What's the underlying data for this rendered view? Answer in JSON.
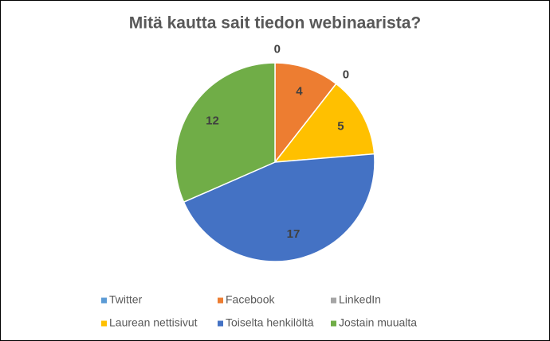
{
  "chart_data": {
    "type": "pie",
    "title": "Mitä kautta sait tiedon webinaarista?",
    "categories": [
      "Twitter",
      "Facebook",
      "LinkedIn",
      "Laurean nettisivut",
      "Toiselta henkilöltä",
      "Jostain muualta"
    ],
    "values": [
      0,
      4,
      0,
      5,
      17,
      12
    ],
    "colors": [
      "#5b9bd5",
      "#ed7d31",
      "#a5a5a5",
      "#ffc000",
      "#4472c4",
      "#70ad47"
    ],
    "legend": "bottom"
  }
}
